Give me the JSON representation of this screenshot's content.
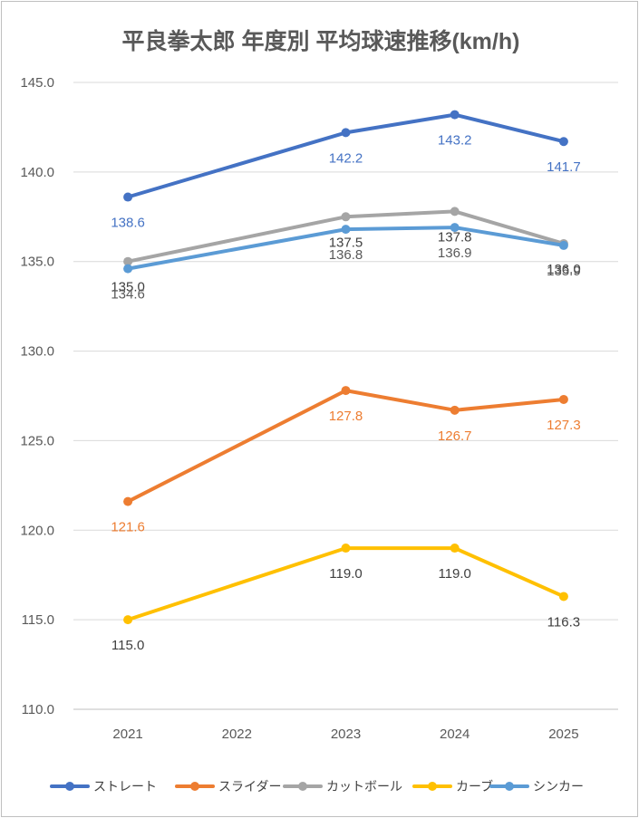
{
  "chart_data": {
    "type": "line",
    "title": "平良拳太郎 年度別 平均球速推移(km/h)",
    "categories": [
      "2021",
      "2022",
      "2023",
      "2024",
      "2025"
    ],
    "ylim": [
      110.0,
      145.0
    ],
    "yticks": [
      "110.0",
      "115.0",
      "120.0",
      "125.0",
      "130.0",
      "135.0",
      "140.0",
      "145.0"
    ],
    "grid": true,
    "legend_position": "bottom",
    "series": [
      {
        "name": "ストレート",
        "color": "#4472C4",
        "values": [
          138.6,
          null,
          142.2,
          143.2,
          141.7
        ],
        "labels": [
          "138.6",
          null,
          "142.2",
          "143.2",
          "141.7"
        ],
        "label_color": "#4472C4"
      },
      {
        "name": "スライダー",
        "color": "#ED7D31",
        "values": [
          121.6,
          null,
          127.8,
          126.7,
          127.3
        ],
        "labels": [
          "121.6",
          null,
          "127.8",
          "126.7",
          "127.3"
        ],
        "label_color": "#ED7D31"
      },
      {
        "name": "カットボール",
        "color": "#A5A5A5",
        "values": [
          135.0,
          null,
          137.5,
          137.8,
          136.0
        ],
        "labels": [
          "135.0",
          null,
          "137.5",
          "137.8",
          "136.0"
        ],
        "label_color": "#404040"
      },
      {
        "name": "カーブ",
        "color": "#FFC000",
        "values": [
          115.0,
          null,
          119.0,
          119.0,
          116.3
        ],
        "labels": [
          "115.0",
          null,
          "119.0",
          "119.0",
          "116.3"
        ],
        "label_color": "#404040"
      },
      {
        "name": "シンカー",
        "color": "#5B9BD5",
        "values": [
          134.6,
          null,
          136.8,
          136.9,
          135.9
        ],
        "labels": [
          "134.6",
          null,
          "136.8",
          "136.9",
          "135.9"
        ],
        "label_color": "#595959"
      }
    ]
  }
}
